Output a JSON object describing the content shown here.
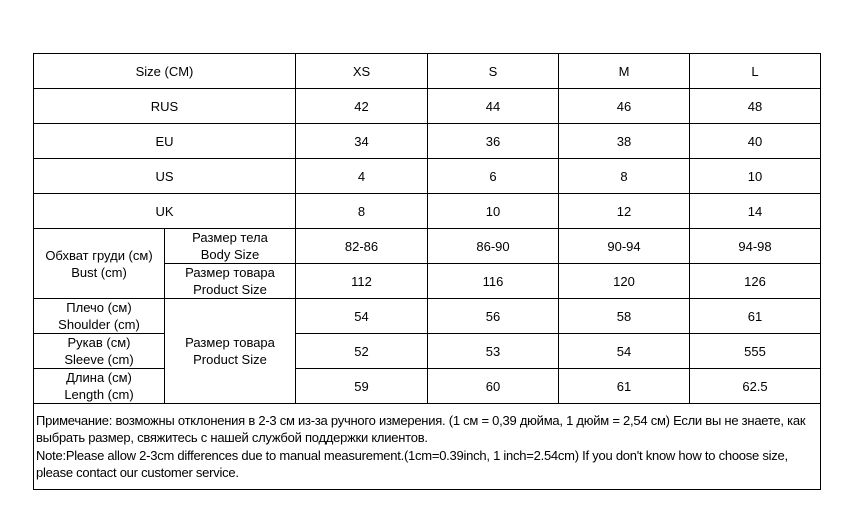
{
  "header": {
    "label": "Size (CM)",
    "sizes": [
      "XS",
      "S",
      "M",
      "L"
    ]
  },
  "rows": [
    {
      "label": "RUS",
      "values": [
        "42",
        "44",
        "46",
        "48"
      ]
    },
    {
      "label": "EU",
      "values": [
        "34",
        "36",
        "38",
        "40"
      ]
    },
    {
      "label": "US",
      "values": [
        "4",
        "6",
        "8",
        "10"
      ]
    },
    {
      "label": "UK",
      "values": [
        "8",
        "10",
        "12",
        "14"
      ]
    }
  ],
  "bust": {
    "label_ru": "Обхват груди (см)",
    "label_en": "Bust (cm)",
    "body": {
      "ru": "Размер тела",
      "en": "Body Size",
      "values": [
        "82-86",
        "86-90",
        "90-94",
        "94-98"
      ]
    },
    "product": {
      "ru": "Размер товара",
      "en": "Product Size",
      "values": [
        "112",
        "116",
        "120",
        "126"
      ]
    }
  },
  "product_group": {
    "ru": "Размер товара",
    "en": "Product Size"
  },
  "measures": [
    {
      "ru": "Плечо (см)",
      "en": "Shoulder (cm)",
      "values": [
        "54",
        "56",
        "58",
        "61"
      ]
    },
    {
      "ru": "Рукав (см)",
      "en": "Sleeve (cm)",
      "values": [
        "52",
        "53",
        "54",
        "555"
      ]
    },
    {
      "ru": "Длина (см)",
      "en": "Length (cm)",
      "values": [
        "59",
        "60",
        "61",
        "62.5"
      ]
    }
  ],
  "note": {
    "ru": "Примечание: возможны отклонения в 2-3 см из-за ручного измерения. (1 см = 0,39 дюйма, 1 дюйм = 2,54 см) Если вы не знаете, как выбрать размер, свяжитесь с нашей службой поддержки клиентов.",
    "en": "Note:Please allow 2-3cm differences due to manual measurement.(1cm=0.39inch, 1 inch=2.54cm) If you don't know how to choose size, please contact our customer service."
  }
}
